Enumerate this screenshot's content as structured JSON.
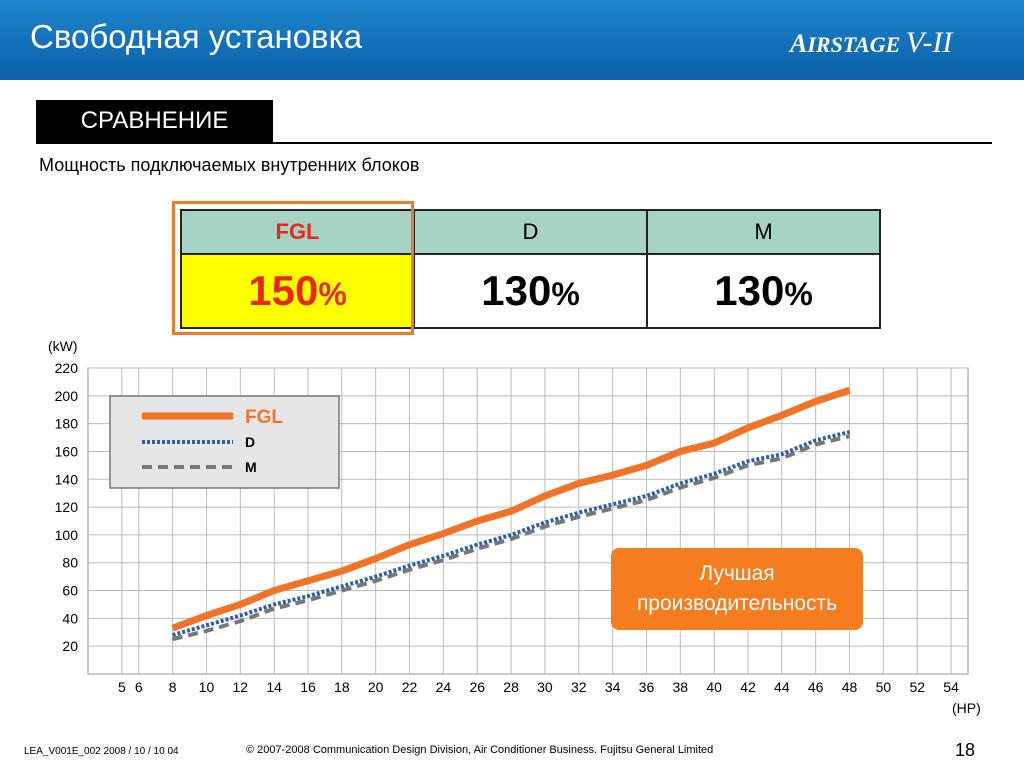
{
  "header": {
    "title": "Свободная установка",
    "logo_a": "A",
    "logo_text": "IRSTAGE",
    "logo_v": "V-II"
  },
  "section": {
    "label": "СРАВНЕНИЕ"
  },
  "subtitle": "Мощность подключаемых внутренних блоков",
  "table": {
    "headers": [
      "FGL",
      "D",
      "M"
    ],
    "values": [
      "150",
      "130",
      "130"
    ],
    "unit": "%"
  },
  "badge": {
    "line1": "Лучшая",
    "line2": "производительность"
  },
  "footer": {
    "code": "LEA_V001E_002   2008 / 10 / 10 04",
    "copyright": "© 2007-2008 Communication Design Division, Air Conditioner Business. Fujitsu General Limited",
    "page": "18"
  },
  "colors": {
    "header_blue": "#0a5fa8",
    "fgl_orange": "#f07328",
    "d_blue": "#2f5fa8",
    "m_gray": "#777777",
    "highlight_yellow": "#ffff00",
    "table_header_green": "#a6d3c3"
  },
  "chart_data": {
    "type": "line",
    "ylabel": "(kW)",
    "xlabel": "(HP)",
    "ylim": [
      0,
      220
    ],
    "yticks": [
      20,
      40,
      60,
      80,
      100,
      120,
      140,
      160,
      180,
      200,
      220
    ],
    "xticks": [
      5,
      6,
      8,
      10,
      12,
      14,
      16,
      18,
      20,
      22,
      24,
      26,
      28,
      30,
      32,
      34,
      36,
      38,
      40,
      42,
      44,
      46,
      48,
      50,
      52,
      54
    ],
    "grid": true,
    "legend_position": "top-left",
    "x": [
      8,
      10,
      12,
      14,
      16,
      18,
      20,
      22,
      24,
      26,
      28,
      30,
      32,
      34,
      36,
      38,
      40,
      42,
      44,
      46,
      48
    ],
    "series": [
      {
        "name": "FGL",
        "color": "#f07328",
        "style": "solid",
        "values": [
          33,
          42,
          50,
          60,
          67,
          74,
          83,
          93,
          101,
          110,
          117,
          128,
          137,
          143,
          150,
          160,
          166,
          177,
          186,
          196,
          204
        ]
      },
      {
        "name": "D",
        "color": "#2f5fa8",
        "style": "dotted",
        "values": [
          28,
          35,
          42,
          50,
          56,
          63,
          70,
          78,
          85,
          93,
          100,
          109,
          116,
          122,
          128,
          137,
          144,
          153,
          158,
          168,
          174
        ]
      },
      {
        "name": "M",
        "color": "#777777",
        "style": "dashed",
        "values": [
          25,
          31,
          38,
          47,
          53,
          60,
          67,
          75,
          82,
          90,
          97,
          106,
          113,
          119,
          125,
          134,
          141,
          150,
          155,
          165,
          171
        ]
      }
    ]
  }
}
